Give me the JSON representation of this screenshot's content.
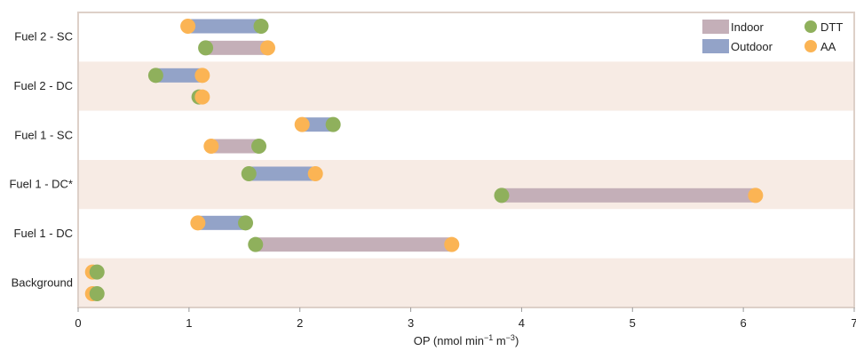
{
  "chart_data": {
    "type": "dumbbell",
    "xlabel": "OP (nmol min",
    "xlabel_sup1": "−1",
    "xlabel_mid": " m",
    "xlabel_sup2": "−3",
    "xlabel_end": ")",
    "xlim": [
      0,
      7
    ],
    "xticks": [
      "0",
      "1",
      "2",
      "3",
      "4",
      "5",
      "6",
      "7"
    ],
    "categories": [
      "Fuel 2 - SC",
      "Fuel 2 - DC",
      "Fuel 1 - SC",
      "Fuel 1 - DC*",
      "Fuel 1 - DC",
      "Background"
    ],
    "grid": false,
    "legend": {
      "position": "top-right",
      "items": [
        {
          "label": "Indoor",
          "kind": "bar",
          "color": "#c4afb8"
        },
        {
          "label": "Outdoor",
          "kind": "bar",
          "color": "#93a3c8"
        },
        {
          "label": "DTT",
          "kind": "dot",
          "color": "#8fb05c"
        },
        {
          "label": "AA",
          "kind": "dot",
          "color": "#fbb454"
        }
      ]
    },
    "series": [
      {
        "name": "Outdoor",
        "values": [
          {
            "category": "Fuel 2 - SC",
            "DTT": 1.65,
            "AA": 0.99
          },
          {
            "category": "Fuel 2 - DC",
            "DTT": 0.7,
            "AA": 1.12
          },
          {
            "category": "Fuel 1 - SC",
            "DTT": 2.3,
            "AA": 2.02
          },
          {
            "category": "Fuel 1 - DC*",
            "DTT": 1.54,
            "AA": 2.14
          },
          {
            "category": "Fuel 1 - DC",
            "DTT": 1.51,
            "AA": 1.08
          },
          {
            "category": "Background",
            "DTT": 0.17,
            "AA": 0.13
          }
        ]
      },
      {
        "name": "Indoor",
        "values": [
          {
            "category": "Fuel 2 - SC",
            "DTT": 1.15,
            "AA": 1.71
          },
          {
            "category": "Fuel 2 - DC",
            "DTT": 1.09,
            "AA": 1.12
          },
          {
            "category": "Fuel 1 - SC",
            "DTT": 1.63,
            "AA": 1.2
          },
          {
            "category": "Fuel 1 - DC*",
            "DTT": 3.82,
            "AA": 6.11
          },
          {
            "category": "Fuel 1 - DC",
            "DTT": 1.6,
            "AA": 3.37
          },
          {
            "category": "Background",
            "DTT": 0.17,
            "AA": 0.13
          }
        ]
      }
    ],
    "colors": {
      "band_shaded": "#f7ebe4",
      "band_plain": "#ffffff",
      "frame": "#ddd0c8",
      "indoor": "#c4afb8",
      "outdoor": "#93a3c8",
      "dtt": "#8fb05c",
      "aa": "#fbb454"
    }
  }
}
